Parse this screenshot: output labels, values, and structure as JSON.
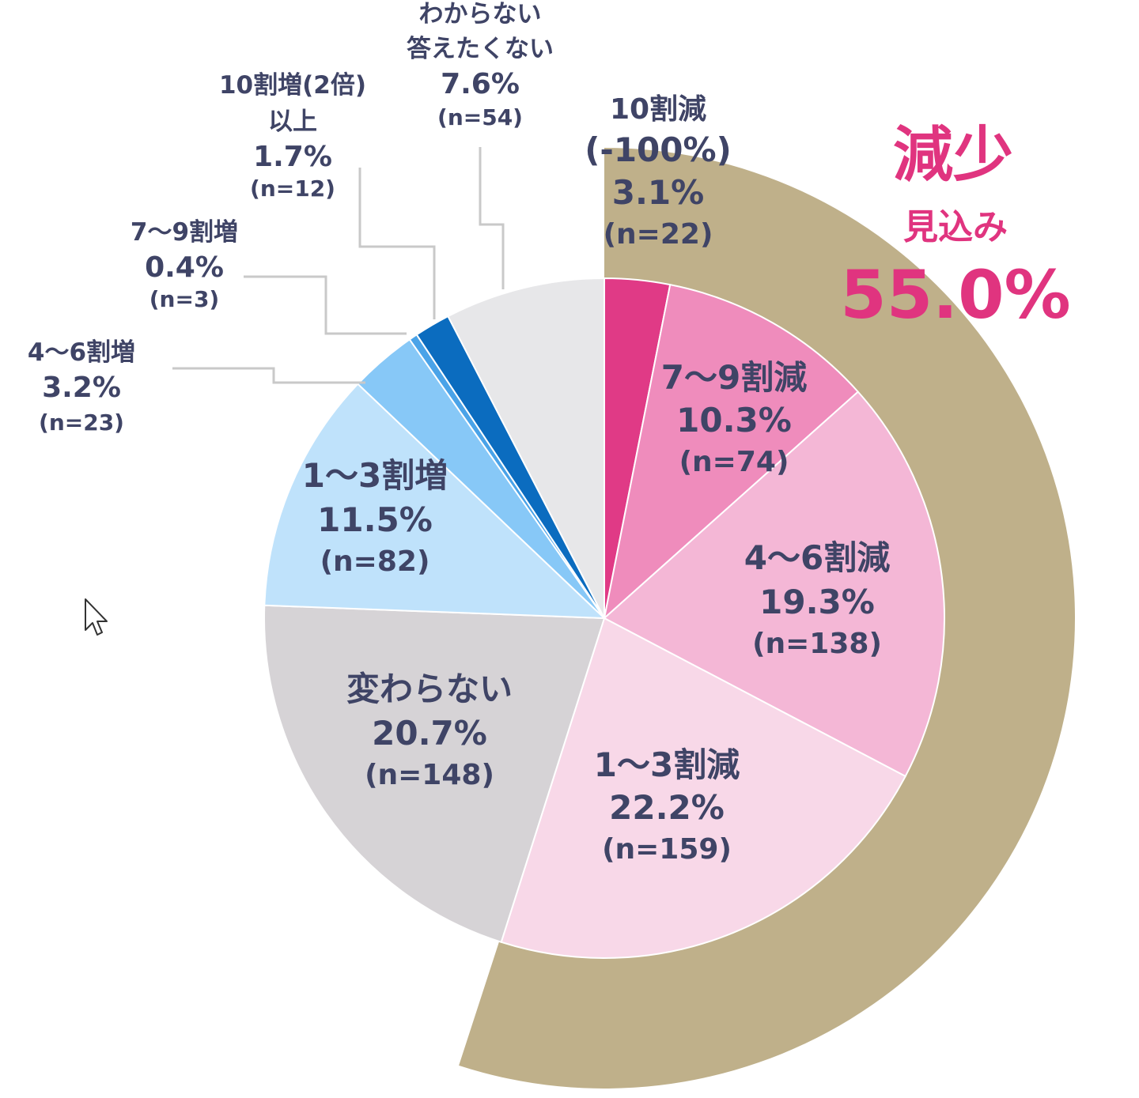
{
  "chart_data": {
    "type": "pie",
    "slices": [
      {
        "label": "10割減",
        "label2": "(-100%)",
        "pct": 3.1,
        "pct_text": "3.1%",
        "n_text": "(n=22)",
        "color": "#e03a86"
      },
      {
        "label": "7〜9割減",
        "pct": 10.3,
        "pct_text": "10.3%",
        "n_text": "(n=74)",
        "color": "#ef8cbc"
      },
      {
        "label": "4〜6割減",
        "pct": 19.3,
        "pct_text": "19.3%",
        "n_text": "(n=138)",
        "color": "#f4b7d6"
      },
      {
        "label": "1〜3割減",
        "pct": 22.2,
        "pct_text": "22.2%",
        "n_text": "(n=159)",
        "color": "#f8d8e8"
      },
      {
        "label": "変わらない",
        "pct": 20.7,
        "pct_text": "20.7%",
        "n_text": "(n=148)",
        "color": "#d6d3d6"
      },
      {
        "label": "1〜3割増",
        "pct": 11.5,
        "pct_text": "11.5%",
        "n_text": "(n=82)",
        "color": "#bfe2fb"
      },
      {
        "label": "4〜6割増",
        "pct": 3.2,
        "pct_text": "3.2%",
        "n_text": "(n=23)",
        "color": "#87c8f7"
      },
      {
        "label": "7〜9割増",
        "pct": 0.4,
        "pct_text": "0.4%",
        "n_text": "(n=3)",
        "color": "#4aa3e8"
      },
      {
        "label": "10割増(2倍)",
        "label2": "以上",
        "pct": 1.7,
        "pct_text": "1.7%",
        "n_text": "(n=12)",
        "color": "#0b6cbf"
      },
      {
        "label": "わからない",
        "label2": "答えたくない",
        "pct": 7.6,
        "pct_text": "7.6%",
        "n_text": "(n=54)",
        "color": "#e7e7e9"
      }
    ],
    "highlight": {
      "title": "減少",
      "subtitle": "見込み",
      "value": 55.0,
      "value_text": "55.0%",
      "ring_color": "#bfb08a",
      "text_color": "#e0347f"
    },
    "legend": "none"
  }
}
